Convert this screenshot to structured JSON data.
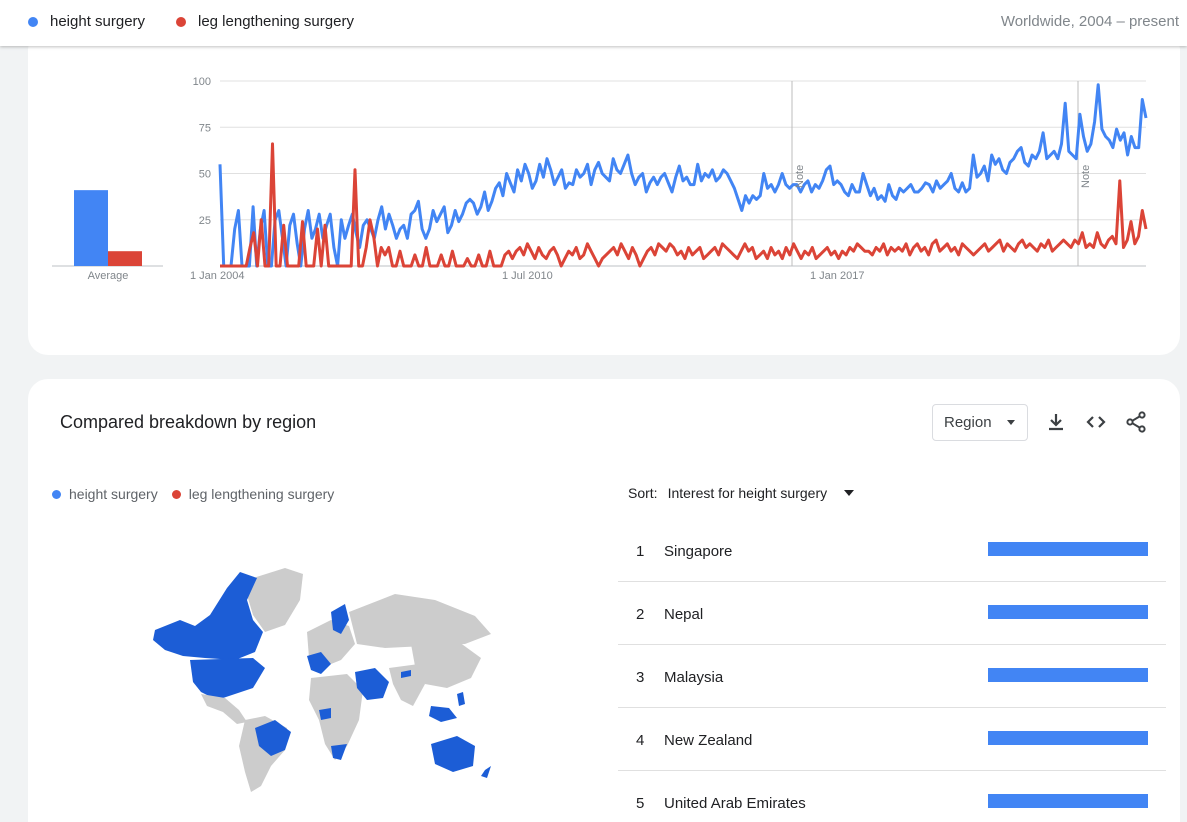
{
  "legend": {
    "series1": "height surgery",
    "series2": "leg lengthening surgery",
    "scope": "Worldwide, 2004 – present"
  },
  "colors": {
    "series1": "#4285f4",
    "series2": "#db4437"
  },
  "chart_data": {
    "type": "line",
    "x_range": [
      "2004-01",
      "2022-12"
    ],
    "x_tick_labels": [
      "1 Jan 2004",
      "1 Jul 2010",
      "1 Jan 2017"
    ],
    "y_ticks": [
      "100",
      "75",
      "50",
      "25"
    ],
    "ylim": [
      0,
      100
    ],
    "grid": true,
    "notes": [
      "Note",
      "Note"
    ],
    "average": {
      "label": "Average",
      "values": [
        41,
        8
      ]
    },
    "series": [
      {
        "name": "height surgery",
        "values": [
          55,
          0,
          0,
          0,
          20,
          30,
          0,
          0,
          0,
          32,
          0,
          20,
          30,
          0,
          0,
          25,
          30,
          15,
          0,
          22,
          28,
          12,
          0,
          20,
          30,
          15,
          20,
          28,
          15,
          22,
          28,
          10,
          0,
          25,
          15,
          22,
          28,
          18,
          10,
          22,
          25,
          20,
          15,
          25,
          32,
          20,
          28,
          22,
          15,
          20,
          22,
          15,
          28,
          30,
          35,
          20,
          15,
          20,
          30,
          24,
          28,
          32,
          18,
          22,
          30,
          24,
          28,
          34,
          36,
          34,
          28,
          32,
          40,
          30,
          35,
          42,
          45,
          38,
          50,
          45,
          40,
          52,
          46,
          55,
          50,
          42,
          46,
          55,
          48,
          58,
          52,
          44,
          48,
          52,
          42,
          45,
          44,
          52,
          48,
          50,
          55,
          44,
          52,
          56,
          50,
          48,
          46,
          58,
          52,
          50,
          55,
          60,
          50,
          44,
          48,
          50,
          40,
          45,
          48,
          44,
          48,
          50,
          45,
          40,
          48,
          54,
          46,
          48,
          44,
          44,
          55,
          46,
          50,
          48,
          52,
          46,
          48,
          52,
          50,
          46,
          42,
          36,
          30,
          38,
          34,
          38,
          36,
          38,
          50,
          42,
          44,
          40,
          44,
          50,
          44,
          42,
          44,
          44,
          40,
          44,
          46,
          40,
          44,
          42,
          46,
          52,
          54,
          44,
          46,
          44,
          40,
          38,
          44,
          40,
          40,
          50,
          44,
          38,
          42,
          36,
          38,
          35,
          44,
          38,
          36,
          42,
          40,
          42,
          44,
          40,
          40,
          42,
          45,
          44,
          40,
          46,
          42,
          44,
          46,
          50,
          42,
          40,
          45,
          40,
          42,
          60,
          48,
          50,
          54,
          46,
          60,
          55,
          58,
          52,
          50,
          56,
          58,
          62,
          64,
          56,
          54,
          60,
          58,
          62,
          72,
          58,
          60,
          62,
          58,
          66,
          88,
          62,
          60,
          58,
          82,
          70,
          62,
          66,
          78,
          98,
          74,
          70,
          68,
          64,
          74,
          68,
          72,
          60,
          70,
          64,
          64,
          90,
          80
        ]
      },
      {
        "name": "leg lengthening surgery",
        "values": [
          0,
          0,
          0,
          0,
          0,
          0,
          0,
          0,
          10,
          18,
          0,
          25,
          0,
          0,
          66,
          0,
          0,
          22,
          0,
          0,
          0,
          0,
          24,
          0,
          0,
          0,
          20,
          0,
          22,
          0,
          0,
          0,
          0,
          0,
          0,
          0,
          52,
          0,
          0,
          10,
          25,
          16,
          0,
          10,
          6,
          10,
          0,
          0,
          8,
          0,
          0,
          0,
          6,
          0,
          0,
          10,
          0,
          0,
          0,
          6,
          0,
          0,
          8,
          0,
          0,
          0,
          4,
          0,
          0,
          6,
          0,
          0,
          8,
          0,
          0,
          0,
          6,
          8,
          4,
          8,
          10,
          6,
          12,
          8,
          4,
          10,
          6,
          4,
          8,
          10,
          6,
          0,
          4,
          8,
          6,
          10,
          4,
          6,
          12,
          8,
          4,
          0,
          4,
          6,
          8,
          10,
          6,
          12,
          8,
          4,
          10,
          6,
          0,
          4,
          8,
          10,
          6,
          12,
          10,
          8,
          12,
          10,
          6,
          8,
          4,
          10,
          6,
          8,
          10,
          4,
          6,
          8,
          10,
          6,
          12,
          10,
          8,
          6,
          4,
          8,
          12,
          8,
          10,
          4,
          6,
          8,
          4,
          10,
          6,
          8,
          4,
          10,
          6,
          12,
          8,
          4,
          8,
          6,
          10,
          4,
          6,
          8,
          10,
          6,
          8,
          4,
          8,
          6,
          10,
          8,
          12,
          10,
          8,
          8,
          6,
          10,
          8,
          12,
          6,
          10,
          8,
          10,
          8,
          12,
          6,
          10,
          12,
          8,
          10,
          6,
          12,
          14,
          8,
          10,
          12,
          8,
          10,
          6,
          12,
          10,
          8,
          6,
          8,
          10,
          12,
          8,
          10,
          12,
          14,
          8,
          12,
          10,
          8,
          12,
          14,
          10,
          12,
          10,
          8,
          12,
          10,
          14,
          8,
          10,
          12,
          14,
          12,
          10,
          14,
          12,
          18,
          10,
          12,
          10,
          18,
          12,
          10,
          14,
          16,
          12,
          46,
          10,
          14,
          24,
          12,
          16,
          30,
          20
        ]
      }
    ]
  },
  "region_section": {
    "title": "Compared breakdown by region",
    "region_select": "Region",
    "legend1": "height surgery",
    "legend2": "leg lengthening surgery",
    "sort_label": "Sort:",
    "sort_value": "Interest for height surgery",
    "rankings": [
      {
        "rank": "1",
        "name": "Singapore",
        "share": 1.0
      },
      {
        "rank": "2",
        "name": "Nepal",
        "share": 1.0
      },
      {
        "rank": "3",
        "name": "Malaysia",
        "share": 1.0
      },
      {
        "rank": "4",
        "name": "New Zealand",
        "share": 1.0
      },
      {
        "rank": "5",
        "name": "United Arab Emirates",
        "share": 1.0
      }
    ]
  }
}
